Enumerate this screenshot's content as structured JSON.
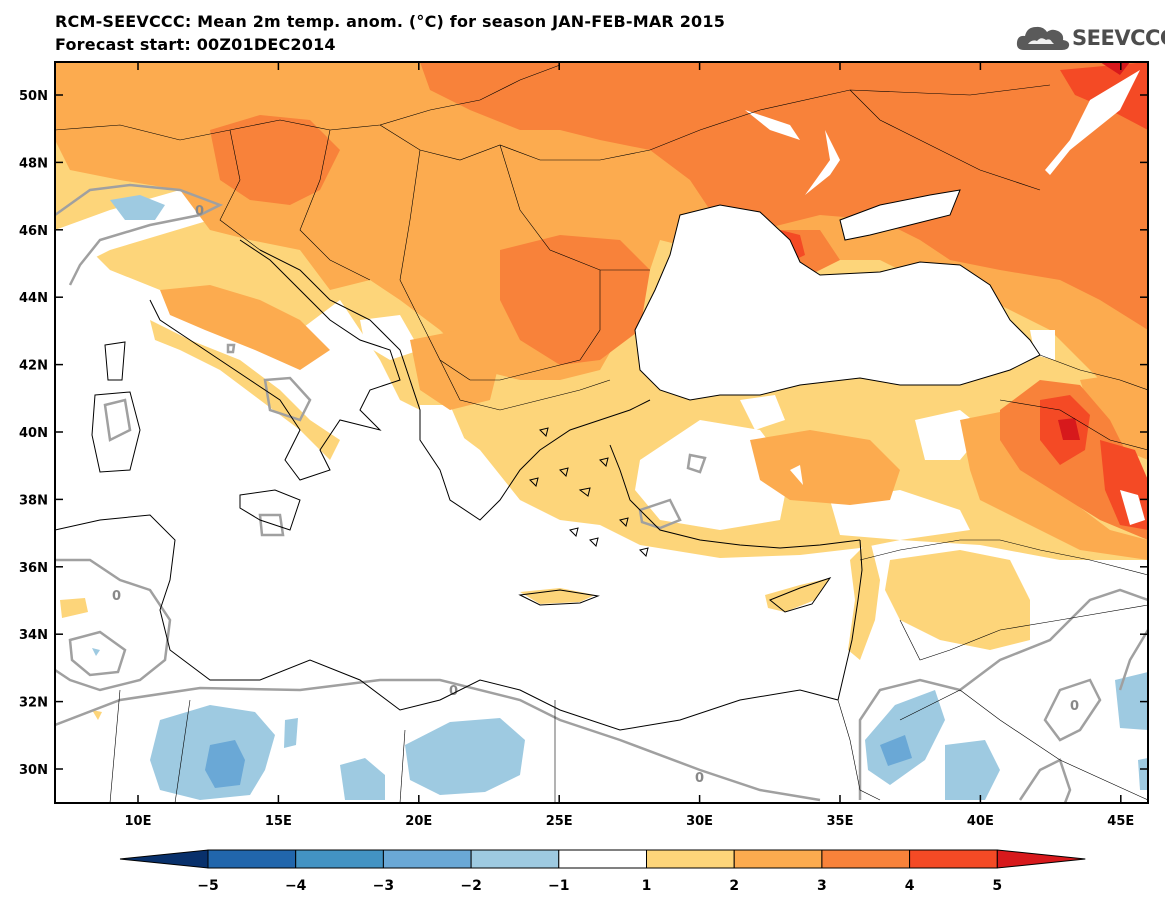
{
  "header": {
    "title_line1": "RCM-SEEVCCC: Mean 2m temp. anom. (°C) for season JAN-FEB-MAR 2015",
    "title_line2": "Forecast start: 00Z01DEC2014"
  },
  "logo": {
    "text": "SEEVCCC",
    "icon": "cloud-icon"
  },
  "map": {
    "lat_ticks": [
      "50N",
      "48N",
      "46N",
      "44N",
      "42N",
      "40N",
      "38N",
      "36N",
      "34N",
      "32N",
      "30N"
    ],
    "lon_ticks": [
      "10E",
      "15E",
      "20E",
      "25E",
      "30E",
      "35E",
      "40E",
      "45E"
    ],
    "contour_label": "0"
  },
  "colorbar": {
    "labels": [
      "−5",
      "−4",
      "−3",
      "−2",
      "−1",
      "1",
      "2",
      "3",
      "4",
      "5"
    ],
    "colors": [
      "#08306b",
      "#2166ac",
      "#4393c3",
      "#6aa8d6",
      "#9ecae1",
      "#ffffff",
      "#fdd57a",
      "#fcab4f",
      "#f8823a",
      "#f44a25",
      "#d7191c"
    ]
  },
  "palette": {
    "anom_1_2": "#fdd57a",
    "anom_2_3": "#fcab4f",
    "anom_3_4": "#f8823a",
    "anom_4_5": "#f44a25",
    "anom_5_plus": "#d7191c",
    "anom_m1_m2": "#9ecae1",
    "anom_m2_m3": "#6aa8d6",
    "zero_contour": "#a0a0a0"
  }
}
